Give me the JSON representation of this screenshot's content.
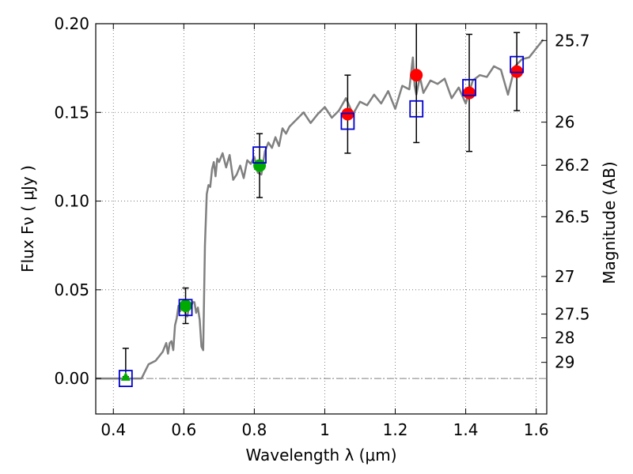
{
  "chart_data": {
    "type": "scatter",
    "xlabel": "Wavelength  λ (μm)",
    "ylabel_left": "Flux  Fν  ( μJy )",
    "ylabel_right": "Magnitude (AB)",
    "xlim": [
      0.35,
      1.63
    ],
    "ylim": [
      -0.02,
      0.2
    ],
    "grid": true,
    "x_ticks": [
      {
        "value": 0.4,
        "label": "0.4"
      },
      {
        "value": 0.6,
        "label": "0.6"
      },
      {
        "value": 0.8,
        "label": "0.8"
      },
      {
        "value": 1.0,
        "label": "1"
      },
      {
        "value": 1.2,
        "label": "1.2"
      },
      {
        "value": 1.4,
        "label": "1.4"
      },
      {
        "value": 1.6,
        "label": "1.6"
      }
    ],
    "y_ticks": [
      {
        "value": 0.0,
        "label": "0.00"
      },
      {
        "value": 0.05,
        "label": "0.05"
      },
      {
        "value": 0.1,
        "label": "0.10"
      },
      {
        "value": 0.15,
        "label": "0.15"
      },
      {
        "value": 0.2,
        "label": "0.20"
      }
    ],
    "right_ticks": [
      {
        "flux": 0.1905,
        "label": "25.7"
      },
      {
        "flux": 0.1445,
        "label": "26"
      },
      {
        "flux": 0.1202,
        "label": "26.2"
      },
      {
        "flux": 0.0912,
        "label": "26.5"
      },
      {
        "flux": 0.0575,
        "label": "27"
      },
      {
        "flux": 0.0363,
        "label": "27.5"
      },
      {
        "flux": 0.0229,
        "label": "28"
      },
      {
        "flux": 0.0091,
        "label": "29"
      }
    ],
    "zero_line": 0.0,
    "colors": {
      "model": "#808080",
      "model_points": "#0000cc",
      "optical": "#00aa00",
      "infrared": "#ff0000",
      "errorbar": "#000000",
      "zero_line": "#808080"
    },
    "model_spectrum": {
      "x": [
        0.35,
        0.48,
        0.49,
        0.5,
        0.52,
        0.54,
        0.55,
        0.555,
        0.56,
        0.565,
        0.57,
        0.575,
        0.58,
        0.585,
        0.59,
        0.595,
        0.6,
        0.605,
        0.61,
        0.615,
        0.62,
        0.625,
        0.63,
        0.635,
        0.64,
        0.645,
        0.65,
        0.655,
        0.66,
        0.665,
        0.67,
        0.675,
        0.68,
        0.685,
        0.69,
        0.695,
        0.7,
        0.71,
        0.72,
        0.73,
        0.74,
        0.75,
        0.76,
        0.77,
        0.78,
        0.79,
        0.8,
        0.81,
        0.82,
        0.83,
        0.84,
        0.85,
        0.86,
        0.87,
        0.88,
        0.89,
        0.9,
        0.92,
        0.94,
        0.96,
        0.98,
        1.0,
        1.02,
        1.04,
        1.06,
        1.08,
        1.1,
        1.12,
        1.14,
        1.16,
        1.18,
        1.2,
        1.22,
        1.24,
        1.25,
        1.255,
        1.26,
        1.27,
        1.28,
        1.3,
        1.32,
        1.34,
        1.36,
        1.38,
        1.4,
        1.42,
        1.44,
        1.46,
        1.48,
        1.5,
        1.52,
        1.54,
        1.56,
        1.58,
        1.6,
        1.62
      ],
      "y": [
        0.0,
        0.0,
        0.004,
        0.008,
        0.01,
        0.015,
        0.02,
        0.014,
        0.02,
        0.021,
        0.016,
        0.03,
        0.034,
        0.041,
        0.038,
        0.042,
        0.04,
        0.036,
        0.035,
        0.041,
        0.04,
        0.043,
        0.043,
        0.037,
        0.04,
        0.033,
        0.018,
        0.016,
        0.075,
        0.104,
        0.109,
        0.108,
        0.118,
        0.122,
        0.114,
        0.124,
        0.122,
        0.127,
        0.119,
        0.126,
        0.112,
        0.115,
        0.12,
        0.113,
        0.123,
        0.121,
        0.125,
        0.116,
        0.115,
        0.128,
        0.133,
        0.13,
        0.136,
        0.131,
        0.141,
        0.138,
        0.142,
        0.146,
        0.15,
        0.144,
        0.149,
        0.153,
        0.147,
        0.151,
        0.158,
        0.149,
        0.156,
        0.154,
        0.16,
        0.155,
        0.162,
        0.152,
        0.165,
        0.163,
        0.181,
        0.165,
        0.16,
        0.17,
        0.161,
        0.168,
        0.166,
        0.169,
        0.158,
        0.164,
        0.155,
        0.168,
        0.171,
        0.17,
        0.176,
        0.174,
        0.16,
        0.176,
        0.18,
        0.181,
        0.186,
        0.191
      ]
    },
    "model_points": {
      "x": [
        0.435,
        0.605,
        0.815,
        1.065,
        1.26,
        1.41,
        1.545
      ],
      "y": [
        0.0,
        0.04,
        0.126,
        0.145,
        0.152,
        0.164,
        0.177
      ]
    },
    "optical_circles": {
      "x": [
        0.605,
        0.815
      ],
      "y": [
        0.041,
        0.12
      ],
      "yerr": [
        0.01,
        0.018
      ]
    },
    "optical_triangle": {
      "x": [
        0.435
      ],
      "y": [
        0.001
      ],
      "yerr_up": [
        0.016
      ]
    },
    "infrared_circles": {
      "x": [
        1.065,
        1.26,
        1.41,
        1.545
      ],
      "y": [
        0.149,
        0.171,
        0.161,
        0.173
      ],
      "yerr": [
        0.022,
        0.038,
        0.033,
        0.022
      ]
    }
  }
}
